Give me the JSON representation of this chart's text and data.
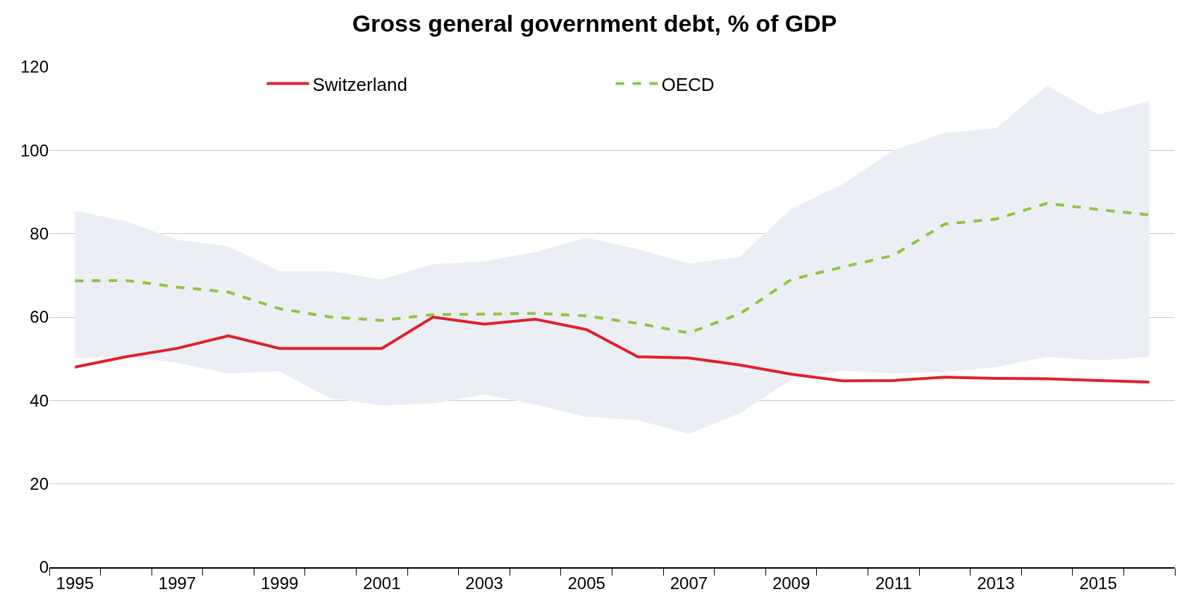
{
  "chart_data": {
    "type": "line",
    "title": "Gross general government debt, % of GDP",
    "categories": [
      "1995",
      null,
      "1997",
      null,
      "1999",
      null,
      "2001",
      null,
      "2003",
      null,
      "2005",
      null,
      "2007",
      null,
      "2009",
      null,
      "2011",
      null,
      "2013",
      null,
      "2015",
      null
    ],
    "series": [
      {
        "name": "Switzerland",
        "color": "#e0202a",
        "line_style": "solid",
        "values": [
          48,
          50.5,
          52.5,
          55.5,
          52.5,
          52.5,
          52.5,
          60,
          58.3,
          59.5,
          57,
          50.5,
          50.2,
          48.5,
          46.3,
          44.7,
          44.8,
          45.6,
          45.3,
          45.2,
          44.8,
          44.4
        ]
      },
      {
        "name": "OECD",
        "color": "#8cc63f",
        "line_style": "dashed",
        "values": [
          68.7,
          68.8,
          67.2,
          66,
          62,
          60,
          59.2,
          60.6,
          60.7,
          60.9,
          60.3,
          58.5,
          56.2,
          60.8,
          69,
          72,
          74.8,
          82.3,
          83.5,
          87.3,
          85.8,
          84.5
        ],
        "lower": [
          50.2,
          50.5,
          49,
          46.5,
          47,
          40.5,
          38.8,
          39.3,
          41.5,
          39,
          36.1,
          35.3,
          32,
          37,
          45,
          47.2,
          46.5,
          46.8,
          48,
          50.5,
          49.6,
          50.5
        ],
        "upper": [
          85.5,
          83,
          78.5,
          77,
          71,
          71,
          69,
          72.7,
          73.3,
          75.6,
          79,
          76.3,
          72.8,
          74.5,
          86,
          91.8,
          100,
          104.2,
          105.3,
          115.5,
          108.6,
          111.8
        ]
      }
    ],
    "ylim": [
      0,
      120
    ],
    "yticks": [
      0,
      20,
      40,
      60,
      80,
      100,
      120
    ],
    "grid": "y",
    "legend": "top",
    "marker": "none"
  }
}
